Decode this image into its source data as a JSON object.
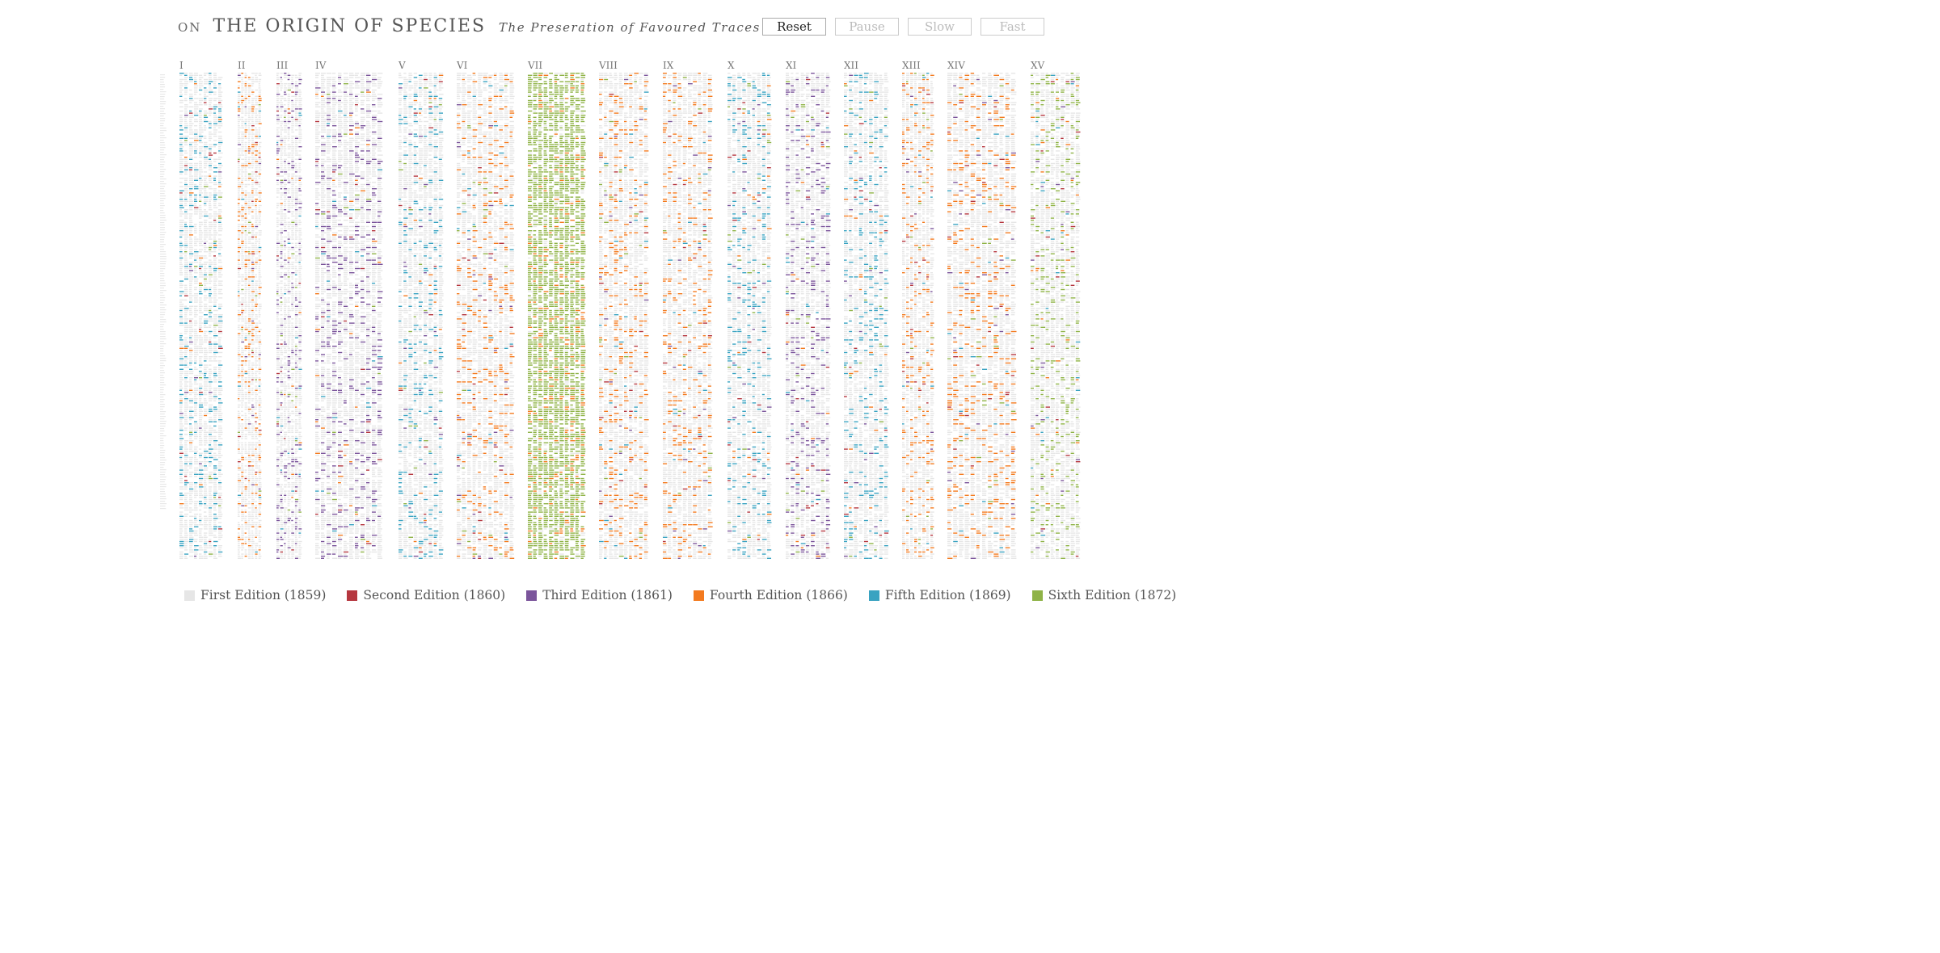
{
  "header": {
    "on": "ON",
    "title": "THE ORIGIN OF SPECIES",
    "subtitle": "The Preseration of Favoured Traces"
  },
  "controls": {
    "reset": "Reset",
    "pause": "Pause",
    "slow": "Slow",
    "fast": "Fast",
    "active": "reset"
  },
  "chapters": [
    "I",
    "II",
    "III",
    "IV",
    "V",
    "VI",
    "VII",
    "VIII",
    "IX",
    "X",
    "XI",
    "XII",
    "XIII",
    "XIV",
    "XV"
  ],
  "editions": [
    {
      "label": "First Edition (1859)",
      "color": "#e6e6e6"
    },
    {
      "label": "Second Edition (1860)",
      "color": "#b5373f"
    },
    {
      "label": "Third Edition (1861)",
      "color": "#7b559b"
    },
    {
      "label": "Fourth Edition (1866)",
      "color": "#f37a1f"
    },
    {
      "label": "Fifth Edition (1869)",
      "color": "#3aa3c1"
    },
    {
      "label": "Sixth Edition (1872)",
      "color": "#8fb347"
    }
  ]
}
